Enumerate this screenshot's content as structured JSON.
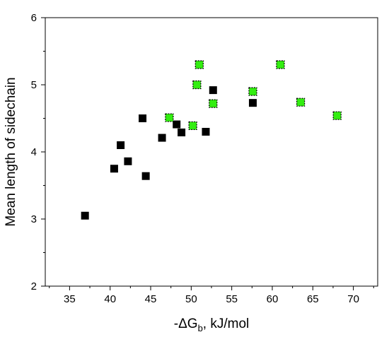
{
  "chart_data": {
    "type": "scatter",
    "title": "",
    "xlabel": "-ΔG_b, kJ/mol",
    "ylabel": "Mean length of sidechain",
    "xlim": [
      32,
      73
    ],
    "ylim": [
      2,
      6
    ],
    "xticks": [
      35,
      40,
      45,
      50,
      55,
      60,
      65,
      70
    ],
    "yticks": [
      2,
      3,
      4,
      5,
      6
    ],
    "grid": false,
    "legend": "none",
    "series": [
      {
        "color": "#000000",
        "marker": "square",
        "points": [
          [
            36.9,
            3.05
          ],
          [
            40.5,
            3.75
          ],
          [
            41.3,
            4.1
          ],
          [
            42.2,
            3.86
          ],
          [
            44.0,
            4.5
          ],
          [
            44.4,
            3.64
          ],
          [
            46.4,
            4.21
          ],
          [
            48.2,
            4.41
          ],
          [
            48.8,
            4.29
          ],
          [
            51.8,
            4.3
          ],
          [
            52.7,
            4.92
          ],
          [
            57.6,
            4.73
          ]
        ]
      },
      {
        "color": "#33ee11",
        "edge_color": "#000000",
        "marker": "square",
        "points": [
          [
            47.3,
            4.51
          ],
          [
            50.2,
            4.39
          ],
          [
            50.7,
            5.0
          ],
          [
            51.0,
            5.3
          ],
          [
            52.7,
            4.72
          ],
          [
            57.6,
            4.9
          ],
          [
            61.0,
            5.3
          ],
          [
            63.5,
            4.74
          ],
          [
            68.0,
            4.54
          ]
        ]
      }
    ]
  }
}
